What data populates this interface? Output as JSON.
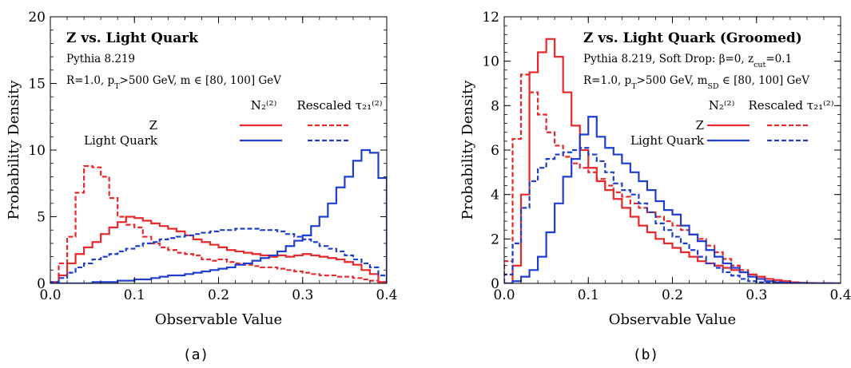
{
  "chart_data": [
    {
      "type": "line",
      "caption": "(a)",
      "title": "Z vs. Light Quark",
      "subtitle_lines": [
        "Pythia 8.219",
        "R=1.0, pT>500 GeV, m ∈ [80, 100] GeV"
      ],
      "xlabel": "Observable Value",
      "ylabel": "Probability Density",
      "xlim": [
        0.0,
        0.4
      ],
      "ylim": [
        0,
        20
      ],
      "xticks": [
        0.0,
        0.1,
        0.2,
        0.3,
        0.4
      ],
      "yticks": [
        0,
        5,
        10,
        15,
        20
      ],
      "legend": {
        "col_headers": [
          "N₂⁽²⁾",
          "Rescaled τ₂₁⁽²⁾"
        ],
        "row_labels": [
          "Z",
          "Light Quark"
        ]
      },
      "bin_width": 0.01,
      "series": [
        {
          "name": "Z",
          "observable": "N2",
          "color": "#e8282a",
          "dash": false,
          "values": [
            0.1,
            0.6,
            1.5,
            2.2,
            2.7,
            3.1,
            3.7,
            4.2,
            4.6,
            5.0,
            4.9,
            4.7,
            4.5,
            4.3,
            4.1,
            3.9,
            3.6,
            3.3,
            3.1,
            2.9,
            2.7,
            2.5,
            2.4,
            2.3,
            2.2,
            2.1,
            2.0,
            2.1,
            2.0,
            2.1,
            2.2,
            2.1,
            2.0,
            1.9,
            1.8,
            1.6,
            1.4,
            1.0,
            0.7,
            0.1
          ]
        },
        {
          "name": "Z",
          "observable": "Rescaled tau21",
          "color": "#e8282a",
          "dash": true,
          "values": [
            0.0,
            1.5,
            3.5,
            6.8,
            8.8,
            8.7,
            8.0,
            6.4,
            5.0,
            4.4,
            4.2,
            3.5,
            3.0,
            2.7,
            2.5,
            2.3,
            2.2,
            2.1,
            1.8,
            1.7,
            1.8,
            1.6,
            1.5,
            1.4,
            1.3,
            1.2,
            1.2,
            1.1,
            1.0,
            0.9,
            0.8,
            0.7,
            0.6,
            0.6,
            0.5,
            0.5,
            0.4,
            0.3,
            0.2,
            0.1
          ]
        },
        {
          "name": "Light Quark",
          "observable": "N2",
          "color": "#1f3ecf",
          "dash": false,
          "values": [
            0.0,
            0.0,
            0.0,
            0.0,
            0.0,
            0.1,
            0.1,
            0.1,
            0.2,
            0.2,
            0.3,
            0.3,
            0.4,
            0.5,
            0.6,
            0.6,
            0.7,
            0.8,
            0.9,
            1.0,
            1.1,
            1.2,
            1.4,
            1.5,
            1.7,
            1.9,
            2.1,
            2.4,
            2.8,
            3.2,
            3.6,
            4.3,
            5.0,
            6.0,
            7.2,
            8.0,
            9.2,
            10.0,
            9.8,
            7.9
          ]
        },
        {
          "name": "Light Quark",
          "observable": "Rescaled tau21",
          "color": "#1f3ecf",
          "dash": true,
          "values": [
            0.1,
            0.4,
            0.8,
            1.2,
            1.5,
            1.8,
            2.0,
            2.2,
            2.4,
            2.6,
            2.8,
            3.0,
            3.1,
            3.3,
            3.4,
            3.5,
            3.6,
            3.7,
            3.8,
            3.9,
            4.0,
            4.0,
            4.1,
            4.1,
            4.1,
            4.0,
            4.0,
            3.9,
            3.7,
            3.5,
            3.3,
            3.1,
            2.8,
            2.6,
            2.4,
            2.1,
            1.8,
            1.5,
            1.2,
            0.6
          ]
        }
      ]
    },
    {
      "type": "line",
      "caption": "(b)",
      "title": "Z vs. Light Quark (Groomed)",
      "subtitle_lines": [
        "Pythia 8.219, Soft Drop: β=0, zcut=0.1",
        "R=1.0, pT>500 GeV, mSD ∈ [80, 100] GeV"
      ],
      "xlabel": "Observable Value",
      "ylabel": "Probability Density",
      "xlim": [
        0.0,
        0.4
      ],
      "ylim": [
        0,
        12
      ],
      "xticks": [
        0.0,
        0.1,
        0.2,
        0.3,
        0.4
      ],
      "yticks": [
        0,
        2,
        4,
        6,
        8,
        10,
        12
      ],
      "legend": {
        "col_headers": [
          "N₂⁽²⁾",
          "Rescaled τ₂₁⁽²⁾"
        ],
        "row_labels": [
          "Z",
          "Light Quark"
        ]
      },
      "bin_width": 0.01,
      "series": [
        {
          "name": "Z",
          "observable": "N2",
          "color": "#e8282a",
          "dash": false,
          "values": [
            0.0,
            0.8,
            4.0,
            9.5,
            10.4,
            11.0,
            10.2,
            8.6,
            7.1,
            6.0,
            5.2,
            4.6,
            4.2,
            3.8,
            3.4,
            3.0,
            2.6,
            2.3,
            2.0,
            1.8,
            1.6,
            1.4,
            1.2,
            1.0,
            0.9,
            0.8,
            0.7,
            0.6,
            0.5,
            0.4,
            0.3,
            0.2,
            0.15,
            0.1,
            0.05,
            0.03,
            0.02,
            0.01,
            0.01,
            0.0
          ]
        },
        {
          "name": "Z",
          "observable": "Rescaled tau21",
          "color": "#e8282a",
          "dash": true,
          "values": [
            1.0,
            6.5,
            9.4,
            8.6,
            7.6,
            6.8,
            6.2,
            5.7,
            5.4,
            5.2,
            5.0,
            4.7,
            4.4,
            4.1,
            3.9,
            3.6,
            3.4,
            3.2,
            3.0,
            2.8,
            2.6,
            2.4,
            2.2,
            2.0,
            1.7,
            1.4,
            1.1,
            0.8,
            0.6,
            0.4,
            0.3,
            0.2,
            0.1,
            0.05,
            0.03,
            0.02,
            0.01,
            0.0,
            0.0,
            0.0
          ]
        },
        {
          "name": "Light Quark",
          "observable": "N2",
          "color": "#1f3ecf",
          "dash": false,
          "values": [
            0.0,
            0.1,
            0.3,
            0.6,
            1.2,
            2.3,
            3.6,
            4.8,
            5.6,
            6.7,
            7.5,
            6.6,
            6.1,
            5.8,
            5.4,
            5.0,
            4.6,
            4.2,
            3.7,
            3.3,
            3.1,
            2.6,
            2.2,
            1.9,
            1.5,
            1.2,
            0.9,
            0.7,
            0.5,
            0.3,
            0.2,
            0.1,
            0.05,
            0.03,
            0.02,
            0.01,
            0.0,
            0.0,
            0.0,
            0.0
          ]
        },
        {
          "name": "Light Quark",
          "observable": "Rescaled tau21",
          "color": "#1f3ecf",
          "dash": true,
          "values": [
            0.4,
            1.8,
            3.4,
            4.6,
            5.2,
            5.6,
            5.8,
            5.9,
            6.0,
            6.1,
            5.8,
            5.5,
            5.0,
            4.5,
            4.2,
            4.0,
            3.6,
            3.2,
            2.7,
            2.4,
            2.1,
            1.8,
            1.5,
            1.2,
            0.9,
            0.7,
            0.5,
            0.35,
            0.2,
            0.1,
            0.05,
            0.03,
            0.02,
            0.01,
            0.0,
            0.0,
            0.0,
            0.0,
            0.0,
            0.0
          ]
        }
      ]
    }
  ]
}
